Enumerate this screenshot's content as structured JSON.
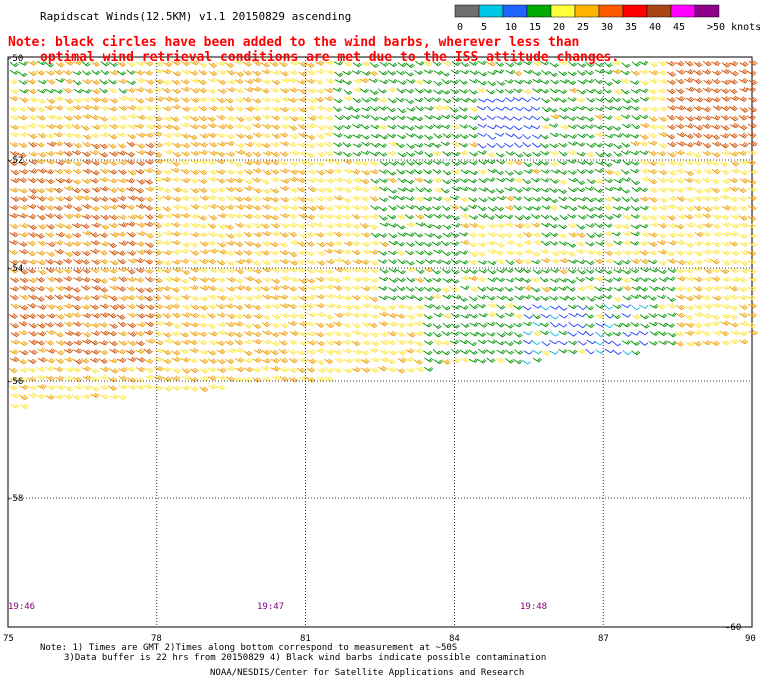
{
  "header": {
    "title": "Rapidscat Winds(12.5KM) v1.1 20150829 ascending",
    "note_line1": "Note: black circles have been added to the wind barbs, wherever less than",
    "note_line2": "optimal wind retrieval conditions are met due to the ISS attitude changes."
  },
  "legend": {
    "units": ">50 knots",
    "swatches": [
      {
        "label": "0",
        "color": "#6e6e6e"
      },
      {
        "label": "5",
        "color": "#00c8e6"
      },
      {
        "label": "10",
        "color": "#1e64ff"
      },
      {
        "label": "15",
        "color": "#00aa00"
      },
      {
        "label": "20",
        "color": "#ffff3c"
      },
      {
        "label": "25",
        "color": "#ffb400"
      },
      {
        "label": "30",
        "color": "#ff5a00"
      },
      {
        "label": "35",
        "color": "#ff0000"
      },
      {
        "label": "40",
        "color": "#aa4614"
      },
      {
        "label": "45",
        "color": "#ff00ff"
      },
      {
        "label": "",
        "color": "#8c008c"
      }
    ]
  },
  "map": {
    "lon_range": [
      75,
      90
    ],
    "lat_range": [
      -60,
      -50
    ],
    "lat_labels": [
      "-50",
      "-52",
      "-54",
      "-56",
      "-58",
      "-60"
    ],
    "lon_labels": [
      "75",
      "78",
      "81",
      "84",
      "87",
      "90"
    ],
    "times": [
      "19:46",
      "19:47",
      "19:48"
    ]
  },
  "footer": {
    "line1": "Note: 1) Times are GMT 2)Times along bottom correspond to measurement at ~50S",
    "line2": "3)Data buffer is 22 hrs from 20150829 4) Black wind barbs indicate possible contamination",
    "line3": "NOAA/NESDIS/Center for Satellite Applications and Research"
  },
  "colors": {
    "note": "#ff0000",
    "time_label": "#800080",
    "grid": "#000000"
  }
}
